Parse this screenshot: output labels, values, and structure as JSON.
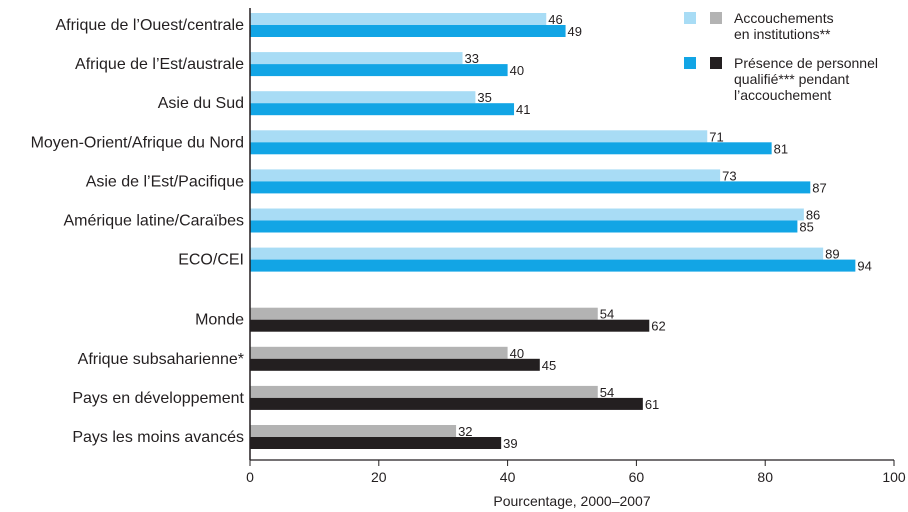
{
  "chart_data": {
    "type": "bar",
    "orientation": "horizontal",
    "xlabel": "Pourcentage, 2000–2007",
    "xlim": [
      0,
      100
    ],
    "xticks": [
      "0",
      "20",
      "40",
      "60",
      "80",
      "100"
    ],
    "grid": false,
    "legend_position": "top-right",
    "legend": [
      {
        "label_lines": [
          "Accouchements",
          "en institutions**"
        ],
        "colors": [
          "#a8dcf5",
          "#b3b3b3"
        ]
      },
      {
        "label_lines": [
          "Présence de personnel",
          "qualifié*** pendant",
          "l’accouchement"
        ],
        "colors": [
          "#12a5e5",
          "#231f20"
        ]
      }
    ],
    "categories": [
      "Afrique de l’Ouest/centrale",
      "Afrique de l’Est/australe",
      "Asie du Sud",
      "Moyen-Orient/Afrique du Nord",
      "Asie de l’Est/Pacifique",
      "Amérique latine/Caraïbes",
      "ECO/CEI",
      "Monde",
      "Afrique subsaharienne*",
      "Pays en développement",
      "Pays les moins avancés"
    ],
    "series": [
      {
        "name": "Accouchements en institutions**",
        "values": [
          46,
          33,
          35,
          71,
          73,
          86,
          89,
          54,
          40,
          54,
          32
        ]
      },
      {
        "name": "Présence de personnel qualifié*** pendant l’accouchement",
        "values": [
          49,
          40,
          41,
          81,
          87,
          85,
          94,
          62,
          45,
          61,
          39
        ]
      }
    ],
    "colors": {
      "regional": [
        "#a8dcf5",
        "#12a5e5"
      ],
      "aggregate": [
        "#b3b3b3",
        "#231f20"
      ]
    },
    "aggregate_start_index": 7
  }
}
